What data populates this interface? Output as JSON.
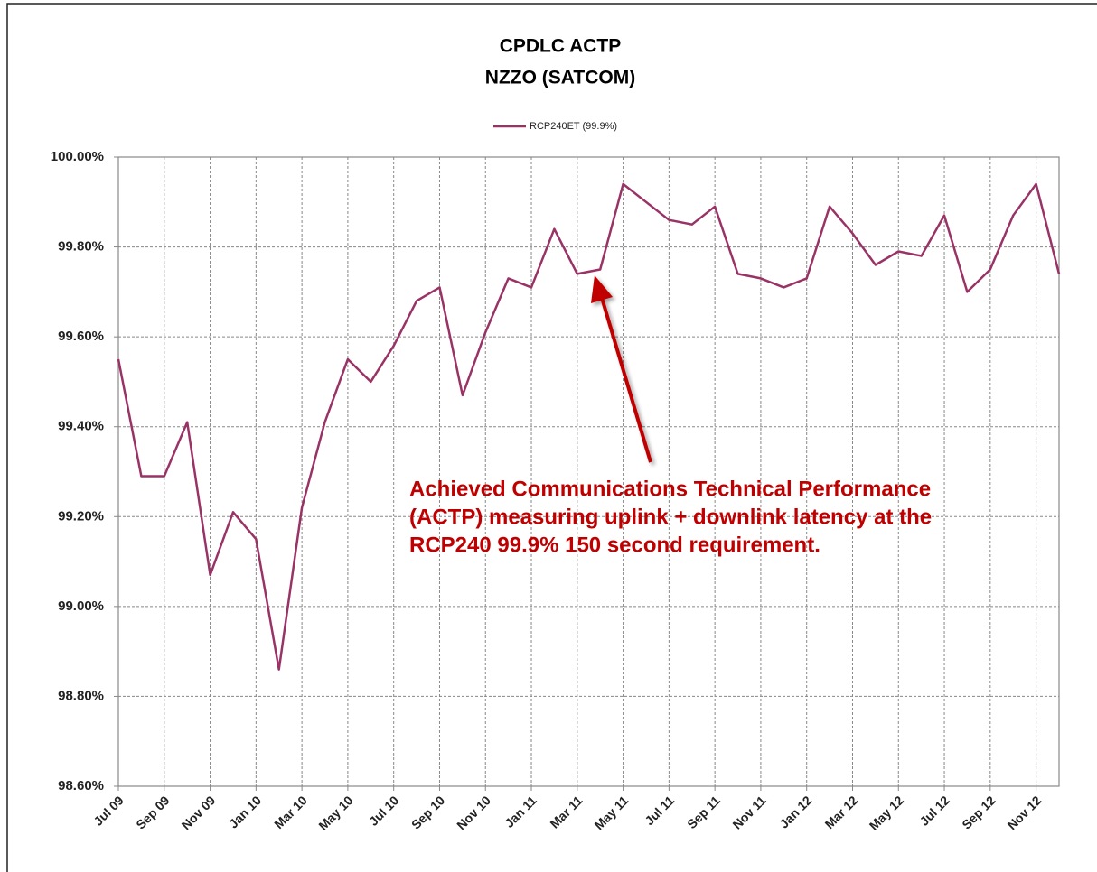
{
  "chart_data": {
    "type": "line",
    "title": "CPDLC ACTP",
    "subtitle": "NZZO (SATCOM)",
    "annotation": [
      "Achieved Communications Technical Performance",
      "(ACTP) measuring uplink + downlink latency at the",
      "RCP240 99.9% 150 second requirement."
    ],
    "categories": [
      "Jul 09",
      null,
      "Sep 09",
      null,
      "Nov 09",
      null,
      "Jan 10",
      null,
      "Mar 10",
      null,
      "May 10",
      null,
      "Jul 10",
      null,
      "Sep 10",
      null,
      "Nov 10",
      null,
      "Jan 11",
      null,
      "Mar 11",
      null,
      "May 11",
      null,
      "Jul 11",
      null,
      "Sep 11",
      null,
      "Nov 11",
      null,
      "Jan 12",
      null,
      "Mar 12",
      null,
      "May 12",
      null,
      "Jul 12",
      null,
      "Sep 12",
      null,
      "Nov 12",
      null
    ],
    "series": [
      {
        "name": "RCP240ET (99.9%)",
        "color": "#993366",
        "values": [
          99.55,
          99.29,
          99.29,
          99.41,
          99.07,
          99.21,
          99.15,
          98.86,
          99.22,
          99.41,
          99.55,
          99.5,
          99.58,
          99.68,
          99.71,
          99.47,
          99.61,
          99.73,
          99.71,
          99.84,
          99.74,
          99.75,
          99.94,
          99.9,
          99.86,
          99.85,
          99.89,
          99.74,
          99.73,
          99.71,
          99.73,
          99.89,
          99.83,
          99.76,
          99.79,
          99.78,
          99.87,
          99.7,
          99.75,
          99.87,
          99.94,
          99.74
        ]
      }
    ],
    "ylim": [
      98.6,
      100
    ],
    "yticks": [
      {
        "value": 98.6,
        "label": "98.60%"
      },
      {
        "value": 98.8,
        "label": "98.80%"
      },
      {
        "value": 99.0,
        "label": "99.00%"
      },
      {
        "value": 99.2,
        "label": "99.20%"
      },
      {
        "value": 99.4,
        "label": "99.40%"
      },
      {
        "value": 99.6,
        "label": "99.60%"
      },
      {
        "value": 99.8,
        "label": "99.80%"
      },
      {
        "value": 100,
        "label": "100.00%"
      }
    ],
    "grid": true,
    "legend": "top"
  }
}
